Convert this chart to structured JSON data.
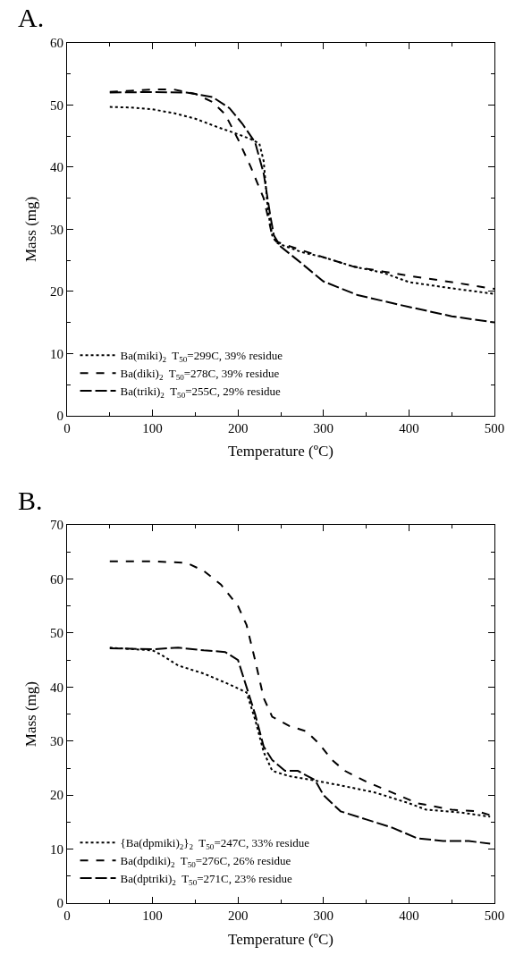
{
  "chart_data": [
    {
      "type": "line",
      "title": "A.",
      "xlabel": "Temperature (ºC)",
      "ylabel": "Mass (mg)",
      "xlim": [
        0,
        500
      ],
      "ylim": [
        0,
        60
      ],
      "xticks": [
        0,
        100,
        200,
        300,
        400,
        500
      ],
      "yticks": [
        0,
        10,
        20,
        30,
        40,
        50,
        60
      ],
      "legend": "bottom left",
      "marker": "none",
      "series": [
        {
          "name": "Ba(miki)$_{2}$  T$_{50}$=299C, 39% residue",
          "color": "#000000",
          "line_style": "dotted",
          "x": [
            50,
            75,
            100,
            125,
            150,
            175,
            200,
            215,
            225,
            230,
            235,
            240,
            245,
            275,
            300,
            335,
            370,
            400,
            450,
            500
          ],
          "values": [
            49.7,
            49.6,
            49.3,
            48.7,
            47.8,
            46.5,
            45.3,
            44.5,
            43.8,
            41,
            33,
            29,
            27.8,
            26.3,
            25.5,
            24,
            23,
            21.5,
            20.5,
            19.6
          ]
        },
        {
          "name": "Ba(diki)$_{2}$  T$_{50}$=278C, 39% residue",
          "color": "#000000",
          "line_style": "dashed",
          "x": [
            50,
            75,
            100,
            125,
            150,
            170,
            185,
            200,
            215,
            230,
            240,
            245,
            275,
            300,
            335,
            370,
            400,
            450,
            500
          ],
          "values": [
            52.1,
            52.3,
            52.5,
            52.5,
            51.8,
            50.5,
            48.5,
            44.5,
            40,
            35,
            29,
            28,
            26.6,
            25.5,
            24,
            23.2,
            22.5,
            21.5,
            20.4
          ]
        },
        {
          "name": "Ba(triki)$_{2}$  T$_{50}$=255C, 29% residue",
          "color": "#000000",
          "line_style": "dashed",
          "x": [
            50,
            100,
            140,
            170,
            190,
            205,
            220,
            230,
            238,
            242,
            250,
            270,
            300,
            340,
            400,
            450,
            500
          ],
          "values": [
            52,
            52.1,
            52,
            51.3,
            49.5,
            47,
            44,
            39,
            32,
            29,
            27.2,
            25,
            21.6,
            19.4,
            17.5,
            16,
            15
          ]
        }
      ]
    },
    {
      "type": "line",
      "title": "B.",
      "xlabel": "Temperature (ºC)",
      "ylabel": "Mass (mg)",
      "xlim": [
        0,
        500
      ],
      "ylim": [
        0,
        70
      ],
      "xticks": [
        0,
        100,
        200,
        300,
        400,
        500
      ],
      "yticks": [
        0,
        10,
        20,
        30,
        40,
        50,
        60,
        70
      ],
      "legend": "bottom left",
      "marker": "none",
      "series": [
        {
          "name": "{Ba(dpmiki)$_{2}$}$_{2}$  T$_{50}$=247C, 33% residue",
          "color": "#000000",
          "line_style": "dotted",
          "x": [
            50,
            100,
            110,
            130,
            160,
            190,
            210,
            220,
            230,
            240,
            260,
            290,
            320,
            360,
            400,
            420,
            460,
            495
          ],
          "values": [
            47.3,
            46.8,
            46,
            44,
            42.5,
            40.5,
            39,
            34,
            28,
            24.5,
            23.5,
            22.7,
            21.8,
            20.5,
            18.5,
            17.3,
            16.8,
            16
          ]
        },
        {
          "name": "Ba(dpdiki)$_{2}$  T$_{50}$=276C, 26% residue",
          "color": "#000000",
          "line_style": "dashed",
          "x": [
            50,
            100,
            140,
            160,
            180,
            200,
            210,
            220,
            230,
            240,
            260,
            280,
            295,
            310,
            325,
            350,
            380,
            410,
            450,
            480,
            495
          ],
          "values": [
            63.3,
            63.3,
            63,
            61.5,
            59,
            55,
            51.5,
            45,
            38,
            34.5,
            32.8,
            31.8,
            29.5,
            26.5,
            24.5,
            22.5,
            20.5,
            18.5,
            17.3,
            17,
            16.3
          ]
        },
        {
          "name": "Ba(dptriki)$_{2}$  T$_{50}$=271C, 23% residue",
          "color": "#000000",
          "line_style": "dashed",
          "x": [
            50,
            100,
            130,
            160,
            185,
            200,
            210,
            220,
            230,
            240,
            255,
            270,
            290,
            300,
            320,
            350,
            380,
            410,
            440,
            470,
            495
          ],
          "values": [
            47.2,
            47,
            47.3,
            46.8,
            46.5,
            45,
            40,
            35,
            29,
            26.5,
            24.5,
            24.5,
            22.8,
            20,
            17,
            15.5,
            14,
            12,
            11.5,
            11.5,
            11
          ]
        }
      ]
    }
  ]
}
